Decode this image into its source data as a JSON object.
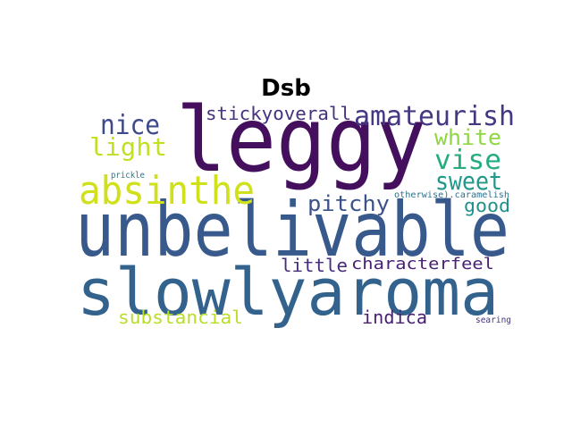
{
  "figure": {
    "title": "Dsb"
  },
  "words": [
    {
      "text": "leggy",
      "color": "#440f5d"
    },
    {
      "text": "unbelivable",
      "color": "#38598c"
    },
    {
      "text": "slowlyaroma",
      "color": "#33638d"
    },
    {
      "text": "absinthe",
      "color": "#d0e11c"
    },
    {
      "text": "amateurish",
      "color": "#453781"
    },
    {
      "text": "stickyoverall",
      "color": "#46327e"
    },
    {
      "text": "nice",
      "color": "#3e4989"
    },
    {
      "text": "light",
      "color": "#c2df23"
    },
    {
      "text": "white",
      "color": "#8fd744"
    },
    {
      "text": "vise",
      "color": "#25ac82"
    },
    {
      "text": "sweet",
      "color": "#1f988b"
    },
    {
      "text": "pitchy",
      "color": "#3b528b"
    },
    {
      "text": "good",
      "color": "#21918c"
    },
    {
      "text": "little",
      "color": "#472d7b"
    },
    {
      "text": "characterfeel",
      "color": "#482173"
    },
    {
      "text": "substancial",
      "color": "#b8de29"
    },
    {
      "text": "indica",
      "color": "#481f70"
    },
    {
      "text": "prickle",
      "color": "#2a788e"
    },
    {
      "text": "otherwise).caramelish",
      "color": "#2c728e"
    },
    {
      "text": "searing",
      "color": "#46337e"
    }
  ]
}
